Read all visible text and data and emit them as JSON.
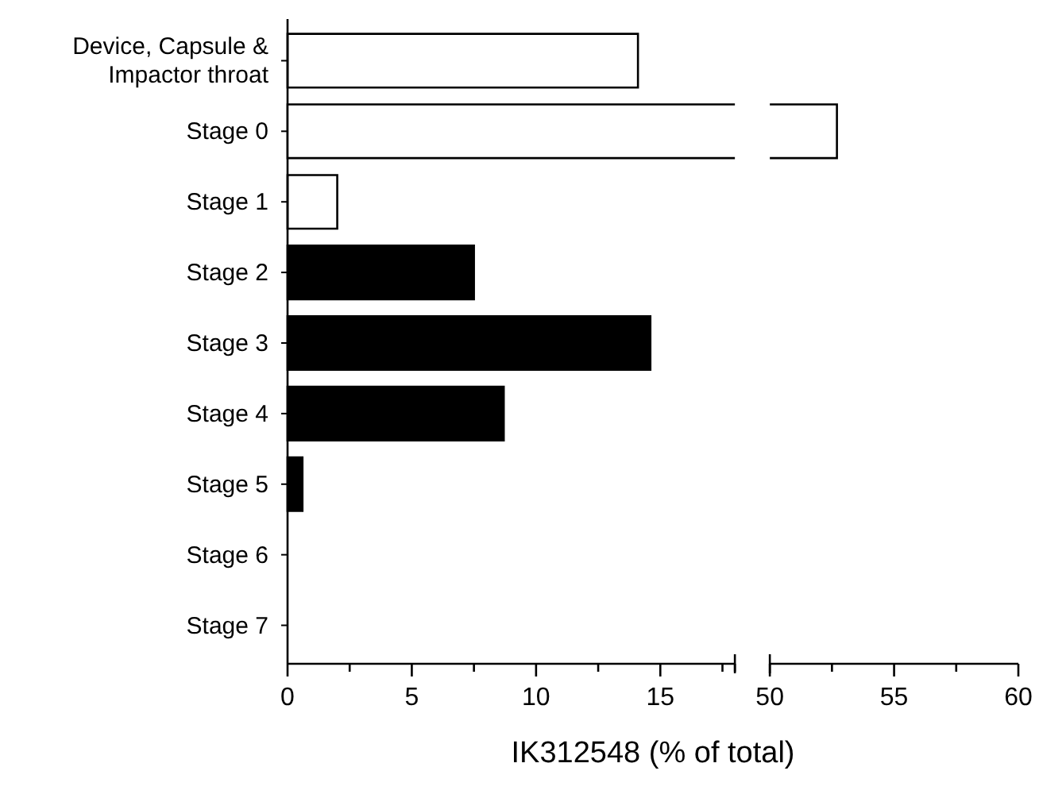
{
  "chart_data": [
    {
      "type": "bar",
      "orientation": "horizontal",
      "xlabel": "IK312548 (% of total)",
      "categories": [
        "Device, Capsule & Impactor throat",
        "Stage 0",
        "Stage 1",
        "Stage 2",
        "Stage 3",
        "Stage 4",
        "Stage 5",
        "Stage 6",
        "Stage 7"
      ],
      "values": [
        14.1,
        null,
        2.0,
        7.5,
        14.6,
        8.7,
        0.6,
        0,
        0
      ],
      "colors": [
        "#ffffff",
        "#ffffff",
        "#ffffff",
        "#000000",
        "#000000",
        "#000000",
        "#000000",
        "#000000",
        "#000000"
      ],
      "xlim": [
        0,
        18
      ],
      "xticks": [
        0,
        {
          "value": 2.5,
          "label": null
        },
        5,
        {
          "value": 7.5,
          "label": null
        },
        10,
        {
          "value": 12.5,
          "label": null
        },
        15,
        {
          "value": 17.5,
          "label": null
        },
        {
          "value": 18,
          "label": null
        }
      ]
    },
    {
      "type": "bar",
      "orientation": "horizontal",
      "categories": [
        null,
        null,
        null,
        null,
        null,
        null,
        null,
        null,
        null
      ],
      "values": [
        null,
        52.7,
        null,
        null,
        null,
        null,
        null,
        null,
        null
      ],
      "colors": [
        "#ffffff",
        "#ffffff",
        "#ffffff",
        "#000000",
        "#000000",
        "#000000",
        "#000000",
        "#000000",
        "#000000"
      ],
      "xlim": [
        50,
        60
      ],
      "xticks": [
        50,
        {
          "value": 52.5,
          "label": null
        },
        55,
        {
          "value": 57.5,
          "label": null
        },
        60
      ],
      "tick_labels": "x"
    }
  ]
}
